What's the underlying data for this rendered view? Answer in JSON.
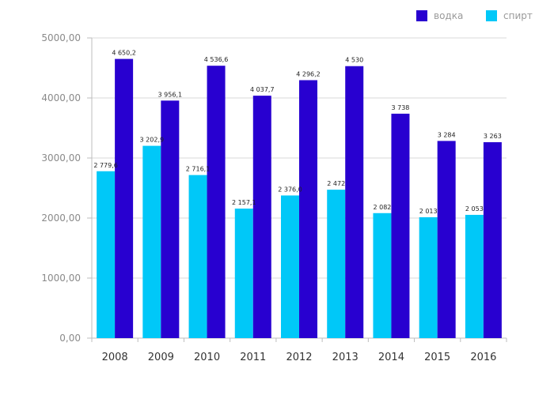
{
  "chart_data": {
    "type": "bar",
    "categories": [
      "2008",
      "2009",
      "2010",
      "2011",
      "2012",
      "2013",
      "2014",
      "2015",
      "2016"
    ],
    "series": [
      {
        "name": "спирт",
        "color": "#00c8f8",
        "values": [
          2779.6,
          3202.9,
          2716.1,
          2157.1,
          2376.0,
          2472,
          2082,
          2013,
          2053
        ],
        "labels": [
          "2 779,6",
          "3 202,9",
          "2 716,1",
          "2 157,1",
          "2 376,0",
          "2 472",
          "2 082",
          "2 013",
          "2 053"
        ]
      },
      {
        "name": "водка",
        "color": "#2800d0",
        "values": [
          4650.2,
          3956.1,
          4536.6,
          4037.7,
          4296.2,
          4530,
          3738,
          3284,
          3263
        ],
        "labels": [
          "4 650,2",
          "3 956,1",
          "4 536,6",
          "4 037,7",
          "4 296,2",
          "4 530",
          "3 738",
          "3 284",
          "3 263"
        ]
      }
    ],
    "y_ticks": [
      0,
      1000,
      2000,
      3000,
      4000,
      5000
    ],
    "y_tick_labels": [
      "0,00",
      "1000,00",
      "2000,00",
      "3000,00",
      "4000,00",
      "5000,00"
    ],
    "ylim": [
      0,
      5000
    ],
    "grid": true,
    "legend": {
      "position": "top-right",
      "order": [
        "водка",
        "спирт"
      ]
    }
  }
}
